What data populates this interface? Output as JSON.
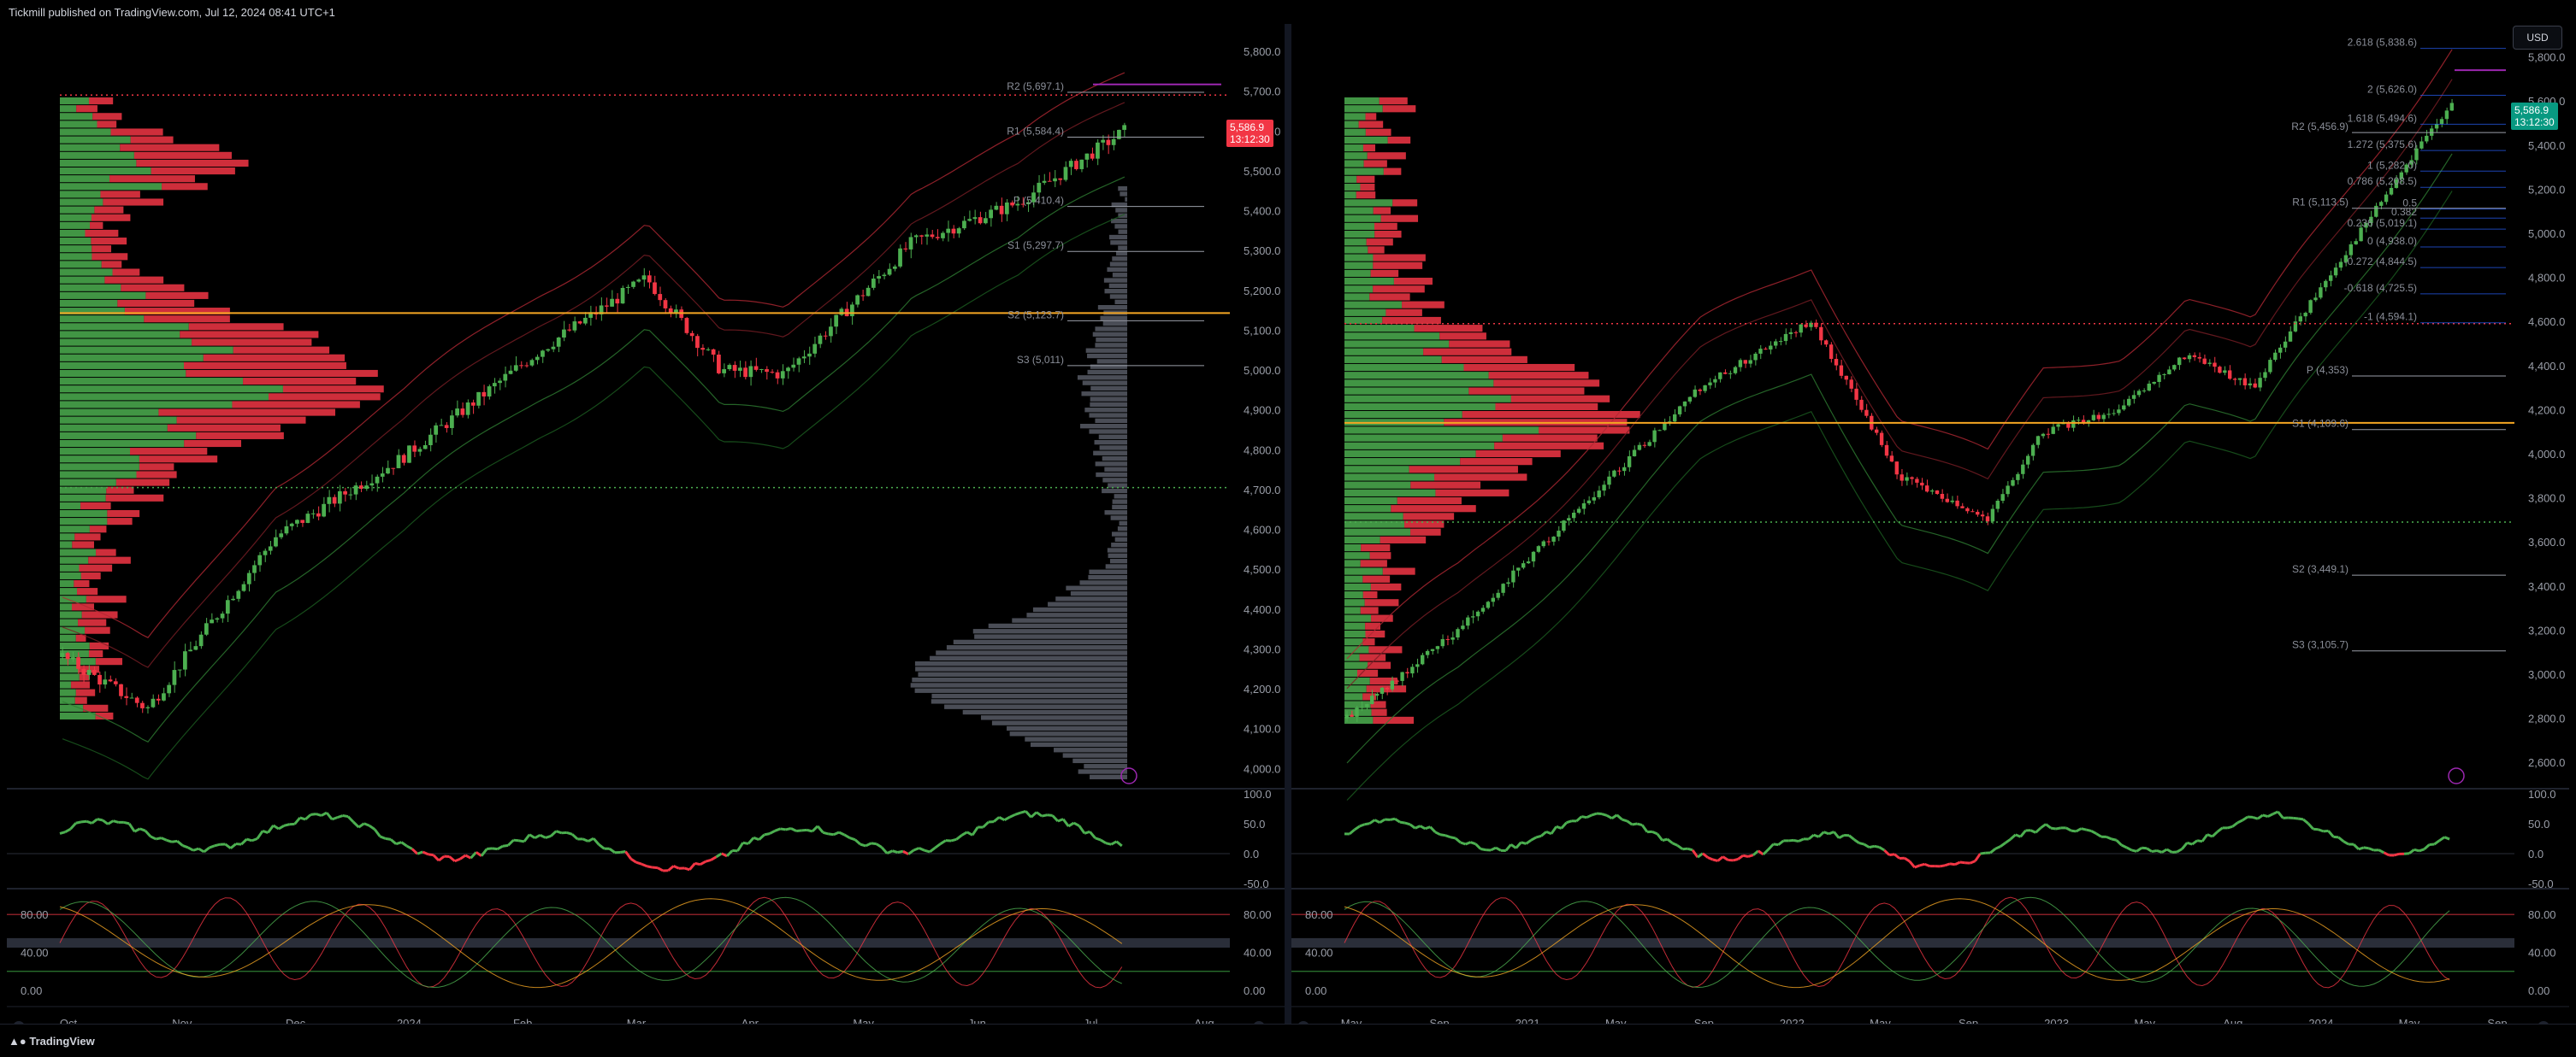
{
  "header": {
    "publish_line": "Tickmill published on TradingView.com, Jul 12, 2024 08:41 UTC+1"
  },
  "footer": {
    "brand": "TradingView"
  },
  "colors": {
    "bull": "#4caf50",
    "bear": "#f23645",
    "poc": "#f5a623",
    "pivot_line": "#9a9ea8",
    "volume_profile_gray": "#5d606b",
    "r2_magenta": "#9c27b0",
    "fib_blue": "#2962ff"
  },
  "left_chart": {
    "price_axis": [
      "5,800.0",
      "5,700.0",
      "5,600.0",
      "5,500.0",
      "5,400.0",
      "5,300.0",
      "5,200.0",
      "5,100.0",
      "5,000.0",
      "4,900.0",
      "4,800.0",
      "4,700.0",
      "4,600.0",
      "4,500.0",
      "4,400.0",
      "4,300.0",
      "4,200.0",
      "4,100.0",
      "4,000.0"
    ],
    "time_axis": [
      "Oct",
      "Nov",
      "Dec",
      "2024",
      "Feb",
      "Mar",
      "Apr",
      "May",
      "Jun",
      "Jul",
      "Aug"
    ],
    "levels": [
      {
        "label": "R2 (5,697.1)",
        "value": 5697.1
      },
      {
        "label": "R1 (5,584.4)",
        "value": 5584.4
      },
      {
        "label": "P (5,410.4)",
        "value": 5410.4
      },
      {
        "label": "S1 (5,297.7)",
        "value": 5297.7
      },
      {
        "label": "S2 (5,123.7)",
        "value": 5123.7
      },
      {
        "label": "S3 (5,011)",
        "value": 5011
      }
    ],
    "last_price": "5,586.9",
    "countdown": "13:12:30",
    "rsi_axis": [
      "100.0",
      "50.0",
      "0.0",
      "-50.0"
    ],
    "stoch_axis": [
      "80.00",
      "40.00",
      "0.00"
    ],
    "stoch_axis_right": [
      "80.00",
      "40.00",
      "0.00"
    ]
  },
  "right_chart": {
    "currency_button": "USD",
    "price_axis": [
      "5,800.0",
      "5,600.0",
      "5,400.0",
      "5,200.0",
      "5,000.0",
      "4,800.0",
      "4,600.0",
      "4,400.0",
      "4,200.0",
      "4,000.0",
      "3,800.0",
      "3,600.0",
      "3,400.0",
      "3,200.0",
      "3,000.0",
      "2,800.0",
      "2,600.0"
    ],
    "time_axis": [
      "May",
      "Sep",
      "2021",
      "May",
      "Sep",
      "2022",
      "May",
      "Sep",
      "2023",
      "May",
      "Aug",
      "2024",
      "May",
      "Sep"
    ],
    "levels": [
      {
        "label": "R2 (5,456.9)",
        "value": 5456.9
      },
      {
        "label": "R1 (5,113.5)",
        "value": 5113.5
      },
      {
        "label": "P (4,353)",
        "value": 4353
      },
      {
        "label": "S1 (4,109.6)",
        "value": 4109.6
      },
      {
        "label": "S2 (3,449.1)",
        "value": 3449.1
      },
      {
        "label": "S3 (3,105.7)",
        "value": 3105.7
      }
    ],
    "fib_levels": [
      {
        "label": "2.618 (5,838.6)",
        "value": 5838.6
      },
      {
        "label": "2 (5,626.0)",
        "value": 5626.0
      },
      {
        "label": "1.618 (5,494.6)",
        "value": 5494.6
      },
      {
        "label": "1.272 (5,375.6)",
        "value": 5375.6
      },
      {
        "label": "1 (5,282.0)",
        "value": 5282.0
      },
      {
        "label": "0.786 (5,208.5)",
        "value": 5208.5
      },
      {
        "label": "0.5",
        "value": 5110
      },
      {
        "label": "0.382",
        "value": 5069
      },
      {
        "label": "0.236 (5,019.1)",
        "value": 5019.1
      },
      {
        "label": "0 (4,938.0)",
        "value": 4938.0
      },
      {
        "label": "-0.272 (4,844.5)",
        "value": 4844.5
      },
      {
        "label": "-0.618 (4,725.5)",
        "value": 4725.5
      },
      {
        "label": "-1 (4,594.1)",
        "value": 4594.1
      }
    ],
    "last_price": "5,586.9",
    "countdown": "13:12:30",
    "rsi_axis": [
      "100.0",
      "50.0",
      "0.0",
      "-50.0"
    ],
    "stoch_axis": [
      "80.00",
      "40.00",
      "0.00"
    ],
    "stoch_axis_right": [
      "80.00",
      "40.00",
      "0.00"
    ]
  }
}
